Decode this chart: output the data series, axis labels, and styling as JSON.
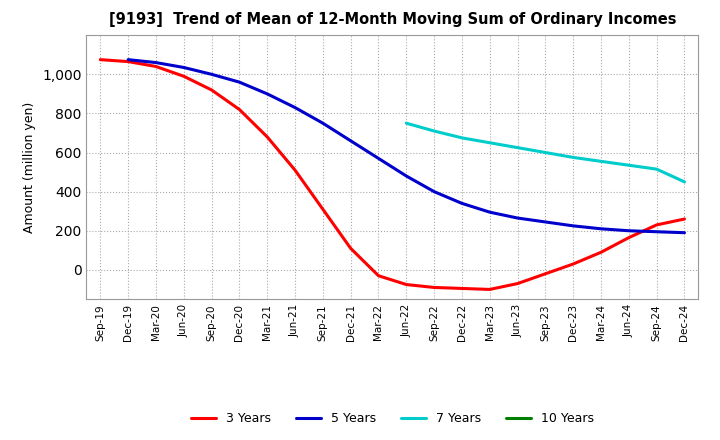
{
  "title": "[9193]  Trend of Mean of 12-Month Moving Sum of Ordinary Incomes",
  "ylabel": "Amount (million yen)",
  "ylim": [
    -150,
    1200
  ],
  "yticks": [
    0,
    200,
    400,
    600,
    800,
    1000
  ],
  "background_color": "#ffffff",
  "grid_color": "#aaaaaa",
  "x_labels": [
    "Sep-19",
    "Dec-19",
    "Mar-20",
    "Jun-20",
    "Sep-20",
    "Dec-20",
    "Mar-21",
    "Jun-21",
    "Sep-21",
    "Dec-21",
    "Mar-22",
    "Jun-22",
    "Sep-22",
    "Dec-22",
    "Mar-23",
    "Jun-23",
    "Sep-23",
    "Dec-23",
    "Mar-24",
    "Jun-24",
    "Sep-24",
    "Dec-24"
  ],
  "series": {
    "3 Years": {
      "color": "#ff0000",
      "values": [
        1075,
        1065,
        1040,
        990,
        920,
        820,
        680,
        510,
        310,
        110,
        -30,
        -75,
        -90,
        -95,
        -100,
        -70,
        -20,
        30,
        90,
        165,
        230,
        260
      ]
    },
    "5 Years": {
      "color": "#0000cc",
      "values": [
        null,
        1075,
        1060,
        1035,
        1000,
        960,
        900,
        830,
        750,
        660,
        570,
        480,
        400,
        340,
        295,
        265,
        245,
        225,
        210,
        200,
        195,
        190
      ]
    },
    "7 Years": {
      "color": "#00cccc",
      "values": [
        null,
        null,
        null,
        null,
        null,
        null,
        null,
        null,
        null,
        null,
        null,
        750,
        710,
        675,
        650,
        625,
        600,
        575,
        555,
        535,
        515,
        450
      ]
    },
    "10 Years": {
      "color": "#008000",
      "values": [
        null,
        null,
        null,
        null,
        null,
        null,
        null,
        null,
        null,
        null,
        null,
        null,
        null,
        null,
        null,
        null,
        null,
        null,
        null,
        null,
        null,
        null
      ]
    }
  },
  "legend_order": [
    "3 Years",
    "5 Years",
    "7 Years",
    "10 Years"
  ]
}
